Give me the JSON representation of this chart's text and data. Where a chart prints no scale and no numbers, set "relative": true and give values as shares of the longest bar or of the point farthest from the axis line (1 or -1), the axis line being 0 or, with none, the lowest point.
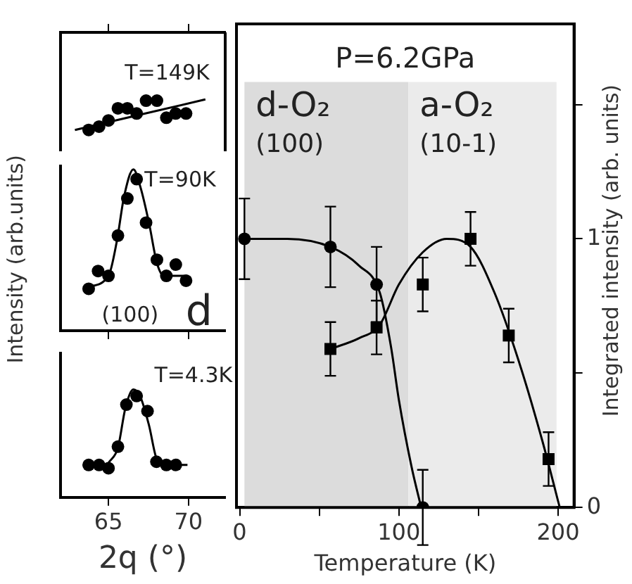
{
  "chart_data": [
    {
      "type": "scatter",
      "relative": true,
      "xlim": [
        62,
        72.3
      ],
      "xticks": [
        65,
        70
      ],
      "tick_labels": false,
      "grid": false,
      "annotations": [
        "T=149K"
      ],
      "series": [
        {
          "type": "scatter",
          "marker": "circle",
          "color": "#000000",
          "x": [
            63.76,
            64.41,
            65.0,
            65.59,
            66.18,
            66.76,
            67.35,
            68.03,
            68.62,
            69.2,
            69.85
          ],
          "values": [
            0,
            0.11,
            0.31,
            0.71,
            0.71,
            0.54,
            0.96,
            0.96,
            0.4,
            0.54,
            0.54
          ]
        },
        {
          "type": "line",
          "marker": "none",
          "color": "#000000",
          "x": [
            62.9,
            71.06
          ],
          "values": [
            0,
            1
          ]
        }
      ]
    },
    {
      "type": "scatter",
      "relative": true,
      "xlim": [
        62,
        72.3
      ],
      "xticks": [
        65,
        70
      ],
      "tick_labels": false,
      "grid": false,
      "ylabel": "Intensity (arb.units)",
      "annotations": [
        "T=90K",
        "(100)",
        "d"
      ],
      "series": [
        {
          "type": "scatter",
          "marker": "circle",
          "color": "#000000",
          "x": [
            63.76,
            64.35,
            65.0,
            65.59,
            66.18,
            66.76,
            67.35,
            68.03,
            68.62,
            69.21,
            69.85
          ],
          "values": [
            0.26,
            0.37,
            0.34,
            0.59,
            0.82,
            0.94,
            0.67,
            0.44,
            0.34,
            0.41,
            0.31
          ]
        },
        {
          "type": "line",
          "marker": "none",
          "color": "#000000",
          "x": [
            63.62,
            65.0,
            65.53,
            65.97,
            66.56,
            67.0,
            67.53,
            68.03,
            68.47,
            69.94
          ],
          "values": [
            0.27,
            0.34,
            0.56,
            0.83,
            1.0,
            0.89,
            0.67,
            0.42,
            0.34,
            0.34
          ]
        }
      ]
    },
    {
      "type": "scatter",
      "relative": true,
      "xlim": [
        62,
        72.3
      ],
      "xticks": [
        65,
        70
      ],
      "tick_labels": "x",
      "grid": false,
      "xlabel": "2q (°)",
      "annotations": [
        "T=4.3K"
      ],
      "series": [
        {
          "type": "scatter",
          "marker": "circle",
          "color": "#000000",
          "x": [
            63.76,
            64.41,
            65.0,
            65.59,
            66.12,
            66.76,
            67.44,
            68.0,
            68.62,
            69.21
          ],
          "values": [
            0.3,
            0.3,
            0.27,
            0.47,
            0.86,
            0.94,
            0.8,
            0.33,
            0.3,
            0.3
          ]
        },
        {
          "type": "line",
          "marker": "none",
          "color": "#000000",
          "x": [
            65.0,
            65.59,
            66.06,
            66.56,
            67.0,
            67.53,
            68.03,
            68.47,
            69.94
          ],
          "values": [
            0.32,
            0.46,
            0.83,
            1.0,
            0.93,
            0.67,
            0.35,
            0.31,
            0.3
          ]
        }
      ]
    },
    {
      "type": "scatter",
      "title": "P=6.2GPa",
      "xlabel": "Temperature (K)",
      "ylabel": "Integrated intensity (arb. units)",
      "xlim": [
        -2,
        210
      ],
      "xticks": [
        0,
        {
          "value": 50,
          "label": null
        },
        100,
        {
          "value": 150,
          "label": null
        },
        200
      ],
      "ylim": [
        0,
        1.8
      ],
      "yticks": [
        0,
        {
          "value": 0.5,
          "label": null
        },
        1,
        {
          "value": 1.5,
          "label": null
        }
      ],
      "grid": false,
      "bands": [
        {
          "axis": "x",
          "from": 3,
          "to": 106,
          "label": "d-O₂ (100)",
          "color": "#dcdcdc"
        },
        {
          "axis": "x",
          "from": 106,
          "to": 199,
          "label": "a-O₂ (10-1)",
          "color": "#ebebeb"
        }
      ],
      "series": [
        {
          "type": "scatter",
          "marker": "circle",
          "color": "#000000",
          "x": [
            3,
            57,
            86,
            115
          ],
          "values": [
            1.0,
            0.97,
            0.83,
            0
          ],
          "errors": [
            0.15,
            0.15,
            0.14,
            0.14
          ]
        },
        {
          "type": "line",
          "marker": "none",
          "color": "#000000",
          "x": [
            3,
            30,
            57,
            75,
            88,
            95,
            100,
            108,
            114
          ],
          "values": [
            1.0,
            1.0,
            0.97,
            0.9,
            0.8,
            0.6,
            0.4,
            0.15,
            0
          ]
        },
        {
          "type": "scatter",
          "marker": "square",
          "color": "#000000",
          "x": [
            57,
            86,
            115,
            145,
            169,
            194
          ],
          "values": [
            0.59,
            0.67,
            0.83,
            1.0,
            0.64,
            0.18
          ],
          "errors": [
            0.1,
            0.1,
            0.1,
            0.1,
            0.1,
            0.1
          ]
        },
        {
          "type": "line",
          "marker": "none",
          "color": "#000000",
          "x": [
            57,
            75,
            88,
            100,
            115,
            130,
            145,
            160,
            175,
            190,
            201
          ],
          "values": [
            0.59,
            0.63,
            0.68,
            0.83,
            0.95,
            1.0,
            0.97,
            0.8,
            0.55,
            0.25,
            0
          ]
        }
      ]
    }
  ]
}
